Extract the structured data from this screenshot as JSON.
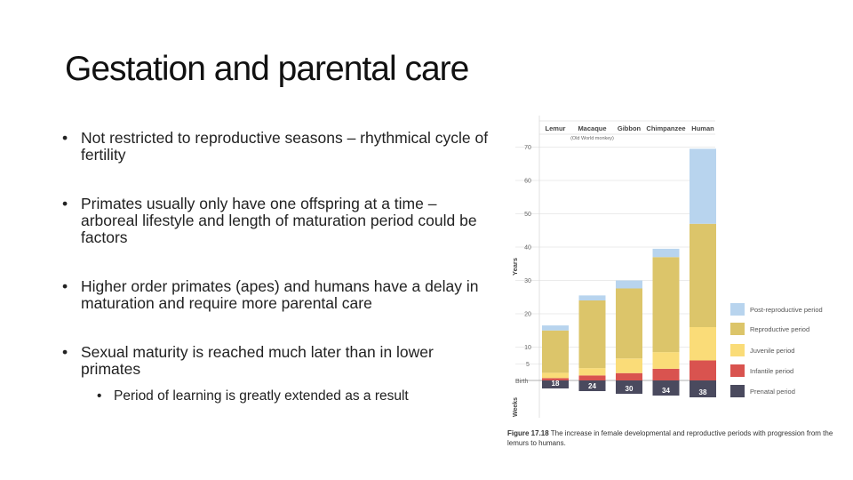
{
  "slide": {
    "title": "Gestation and parental care",
    "bullets": [
      "Not restricted to reproductive seasons – rhythmical cycle of fertility",
      "Primates usually only have one offspring at a time – arboreal lifestyle and length of maturation period could be factors",
      "Higher order primates (apes) and humans have a delay in maturation and require more parental care",
      "Sexual maturity is reached much later than in lower primates"
    ],
    "sub_bullets": [
      "Period of learning is greatly extended as a result"
    ]
  },
  "chart_data": {
    "type": "bar",
    "stacked": true,
    "categories": [
      "Lemur",
      "Macaque",
      "Gibbon",
      "Chimpanzee",
      "Human"
    ],
    "category_notes": [
      "",
      "(Old World monkey)",
      "",
      "",
      ""
    ],
    "ylabel": "Years",
    "ylabel_lower": "Weeks",
    "yticks": [
      5,
      10,
      20,
      30,
      40,
      50,
      60,
      70
    ],
    "ylim": [
      0,
      70
    ],
    "birth_label": "Birth",
    "prenatal_weeks": [
      18,
      24,
      30,
      34,
      38
    ],
    "series": [
      {
        "name": "Infantile period",
        "color": "#d9534f",
        "values": [
          0.7,
          1.5,
          2.2,
          3.5,
          6
        ]
      },
      {
        "name": "Juvenile period",
        "color": "#fadc78",
        "values": [
          1.6,
          2.2,
          4.4,
          5,
          10
        ]
      },
      {
        "name": "Reproductive period",
        "color": "#dcc56a",
        "values": [
          12.7,
          20.3,
          21,
          28.5,
          31
        ]
      },
      {
        "name": "Post-reproductive period",
        "color": "#b8d4ee",
        "values": [
          1.5,
          1.5,
          2.4,
          2.5,
          22.5
        ]
      }
    ],
    "legend": [
      {
        "name": "Post-reproductive period",
        "color": "#b8d4ee"
      },
      {
        "name": "Reproductive period",
        "color": "#dcc56a"
      },
      {
        "name": "Juvenile period",
        "color": "#fadc78"
      },
      {
        "name": "Infantile period",
        "color": "#d9534f"
      },
      {
        "name": "Prenatal period",
        "color": "#4a4a5e"
      }
    ],
    "legend_position": "right",
    "caption_label": "Figure 17.18",
    "caption_text": "The increase in female developmental and reproductive periods with progression from the lemurs to humans."
  }
}
